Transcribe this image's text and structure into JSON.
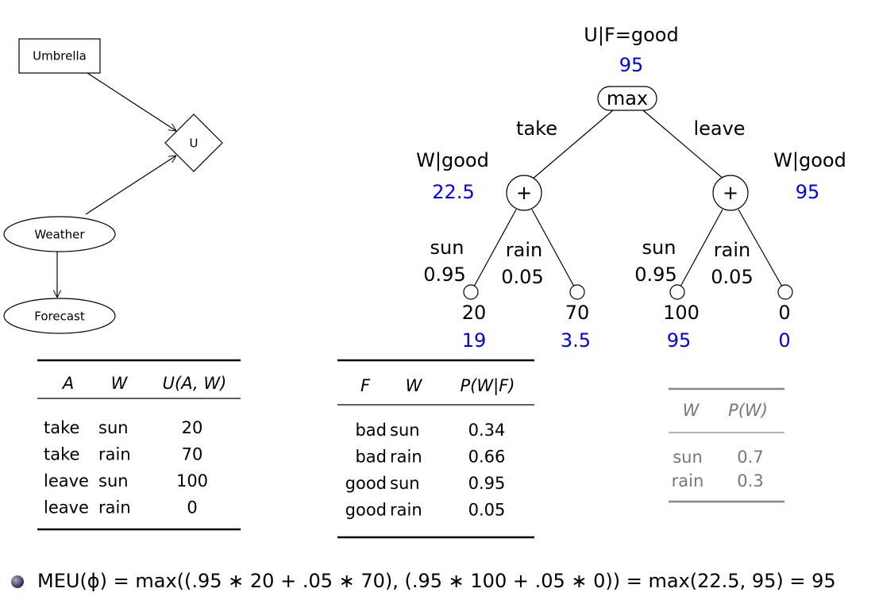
{
  "network": {
    "nodes": [
      "Umbrella",
      "U",
      "Weather",
      "Forecast"
    ]
  },
  "tree": {
    "root": {
      "label": "U|F=good",
      "value": 95,
      "op": "max"
    },
    "branches": [
      {
        "action": "take",
        "label": "W|good",
        "value": 22.5,
        "op": "+",
        "outcomes": [
          {
            "weather": "sun",
            "prob": 0.95,
            "utility": 20,
            "weighted": 19
          },
          {
            "weather": "rain",
            "prob": 0.05,
            "utility": 70,
            "weighted": 3.5
          }
        ]
      },
      {
        "action": "leave",
        "label": "W|good",
        "value": 95,
        "op": "+",
        "outcomes": [
          {
            "weather": "sun",
            "prob": 0.95,
            "utility": 100,
            "weighted": 95
          },
          {
            "weather": "rain",
            "prob": 0.05,
            "utility": 0,
            "weighted": 0
          }
        ]
      }
    ]
  },
  "utility_table": {
    "header": [
      "A",
      "W",
      "U(A, W)"
    ],
    "rows": [
      [
        "take",
        "sun",
        20
      ],
      [
        "take",
        "rain",
        70
      ],
      [
        "leave",
        "sun",
        100
      ],
      [
        "leave",
        "rain",
        0
      ]
    ]
  },
  "forecast_table": {
    "header": [
      "F",
      "W",
      "P(W|F)"
    ],
    "rows": [
      [
        "bad",
        "sun",
        0.34
      ],
      [
        "bad",
        "rain",
        0.66
      ],
      [
        "good",
        "sun",
        0.95
      ],
      [
        "good",
        "rain",
        0.05
      ]
    ]
  },
  "prior_table": {
    "header": [
      "W",
      "P(W)"
    ],
    "rows": [
      [
        "sun",
        0.7
      ],
      [
        "rain",
        0.3
      ]
    ]
  },
  "formula": "MEU(ϕ) = max((.95 ∗ 20 + .05 ∗ 70), (.95 ∗ 100 + .05 ∗ 0)) = max(22.5, 95) = 95"
}
